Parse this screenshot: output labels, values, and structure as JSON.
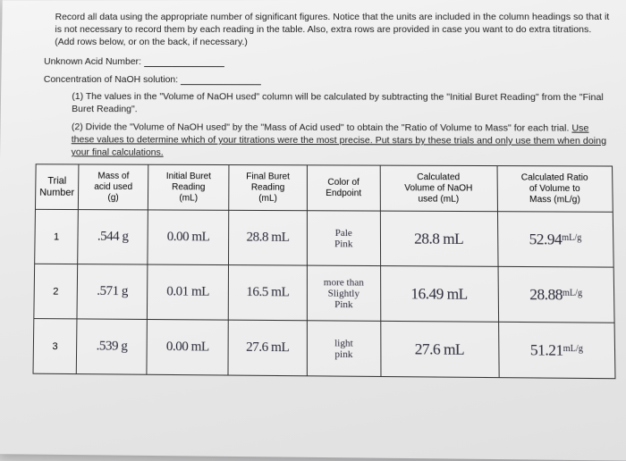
{
  "instructions": "Record all data using the appropriate number of significant figures. Notice that the units are included in the column headings so that it is not necessary to record them by each reading in the table. Also, extra rows are provided in case you want to do extra titrations. (Add rows below, or on the back, if necessary.)",
  "field1_label": "Unknown Acid Number:",
  "field2_label": "Concentration of NaOH solution:",
  "note1_num": "(1)",
  "note1": "The values in the \"Volume of NaOH used\" column will be calculated by subtracting the \"Initial Buret Reading\" from the \"Final Buret Reading\".",
  "note2_num": "(2)",
  "note2_a": "Divide the \"Volume of NaOH used\" by the \"Mass of Acid used\" to obtain the \"Ratio of Volume to Mass\" for each trial. ",
  "note2_b": "Use these values to determine which of your titrations were the most precise. Put stars by these trials and only use them when doing your final calculations.",
  "headers": {
    "trial": "Trial\nNumber",
    "mass": "Mass of\nacid used\n(g)",
    "initial": "Initial Buret\nReading\n(mL)",
    "final": "Final Buret\nReading\n(mL)",
    "color": "Color of\nEndpoint",
    "vol": "Calculated\nVolume of NaOH\nused (mL)",
    "ratio": "Calculated Ratio\nof Volume to\nMass (mL/g)"
  },
  "rows": [
    {
      "trial": "1",
      "mass": ".544 g",
      "initial": "0.00 mL",
      "final": "28.8 mL",
      "color": "Pale\nPink",
      "vol": "28.8 mL",
      "ratio": "52.94",
      "ratio_unit": "mL/g"
    },
    {
      "trial": "2",
      "mass": ".571 g",
      "initial": "0.01 mL",
      "final": "16.5 mL",
      "color": "more than\nSlightly\nPink",
      "vol": "16.49 mL",
      "ratio": "28.88",
      "ratio_unit": "mL/g"
    },
    {
      "trial": "3",
      "mass": ".539 g",
      "initial": "0.00 mL",
      "final": "27.6 mL",
      "color": "light\npink",
      "vol": "27.6 mL",
      "ratio": "51.21",
      "ratio_unit": "mL/g"
    }
  ]
}
